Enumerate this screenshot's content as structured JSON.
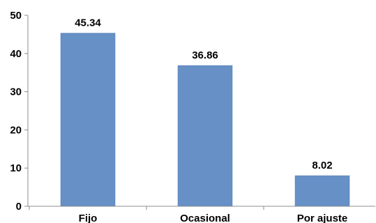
{
  "chart_data": {
    "type": "bar",
    "categories": [
      "Fijo",
      "Ocasional",
      "Por ajuste"
    ],
    "values": [
      45.34,
      36.86,
      8.02
    ],
    "data_labels": [
      "45.34",
      "36.86",
      "8.02"
    ],
    "title": "",
    "xlabel": "",
    "ylabel": "",
    "ylim": [
      0,
      50
    ],
    "yticks": [
      0,
      10,
      20,
      30,
      40,
      50
    ],
    "grid": false,
    "legend": "none",
    "bar_color": "#6690c6",
    "bar_edge_color": "#4f7ab3",
    "axis_color": "#8c8c8c"
  }
}
